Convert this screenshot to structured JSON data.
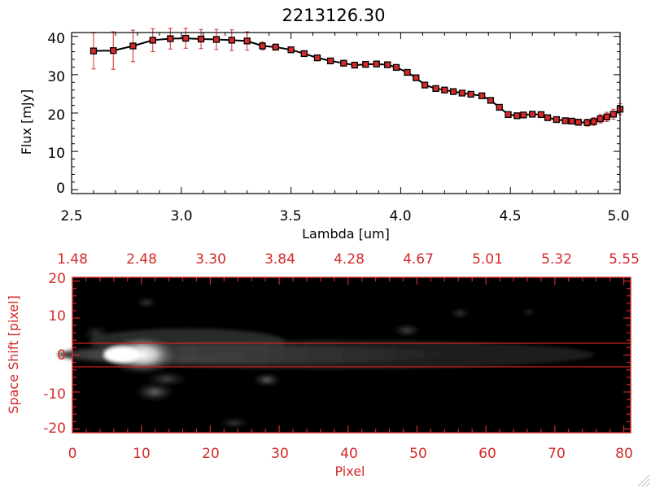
{
  "chart_data": [
    {
      "type": "line",
      "title": "2213126.30",
      "xlabel": "Lambda [um]",
      "ylabel": "Flux [mJy]",
      "xlim": [
        2.5,
        5.0
      ],
      "ylim": [
        -1,
        41
      ],
      "xticks": [
        "2.5",
        "3.0",
        "3.5",
        "4.0",
        "4.5",
        "5.0"
      ],
      "yticks": [
        "0",
        "10",
        "20",
        "30",
        "40"
      ],
      "series_color": "#000000",
      "marker_color": "#d42a2a",
      "error_color": "#d42a2a",
      "x": [
        2.6,
        2.69,
        2.78,
        2.87,
        2.95,
        3.02,
        3.09,
        3.16,
        3.23,
        3.3,
        3.37,
        3.43,
        3.5,
        3.56,
        3.62,
        3.68,
        3.74,
        3.79,
        3.84,
        3.89,
        3.94,
        3.98,
        4.03,
        4.07,
        4.11,
        4.16,
        4.2,
        4.24,
        4.28,
        4.32,
        4.37,
        4.41,
        4.45,
        4.49,
        4.53,
        4.56,
        4.6,
        4.64,
        4.67,
        4.71,
        4.75,
        4.78,
        4.81,
        4.85,
        4.88,
        4.91,
        4.94,
        4.97,
        5.0
      ],
      "y": [
        36.2,
        36.3,
        37.5,
        39.0,
        39.4,
        39.5,
        39.3,
        39.2,
        39.0,
        38.8,
        37.5,
        37.2,
        36.5,
        35.5,
        34.4,
        33.6,
        33.0,
        32.5,
        32.7,
        32.8,
        32.6,
        31.9,
        30.6,
        29.2,
        27.3,
        26.4,
        26.0,
        25.6,
        25.2,
        24.9,
        24.5,
        23.3,
        21.5,
        19.6,
        19.3,
        19.5,
        19.7,
        19.6,
        18.8,
        18.3,
        18.0,
        17.9,
        17.6,
        17.5,
        17.8,
        18.5,
        19.0,
        19.7,
        21.0
      ],
      "yerr": [
        4.7,
        4.9,
        4.1,
        3.0,
        2.7,
        2.6,
        2.5,
        2.6,
        2.7,
        2.4,
        1.0,
        0.8,
        0.6,
        0.5,
        0.5,
        0.4,
        0.4,
        0.4,
        0.4,
        0.4,
        0.4,
        0.4,
        0.4,
        0.4,
        0.5,
        0.5,
        0.5,
        0.5,
        0.5,
        0.5,
        0.6,
        0.6,
        0.6,
        0.6,
        0.6,
        0.6,
        0.6,
        0.6,
        0.6,
        0.6,
        0.6,
        0.7,
        0.8,
        0.9,
        1.0,
        1.1,
        1.2,
        1.3,
        1.4
      ]
    },
    {
      "type": "heatmap",
      "xlabel": "Pixel",
      "ylabel": "Space Shift [pixel]",
      "xlim": [
        0,
        81
      ],
      "ylim": [
        -21,
        21
      ],
      "xticks": [
        "0",
        "10",
        "20",
        "30",
        "40",
        "50",
        "60",
        "70",
        "80"
      ],
      "yticks": [
        "20",
        "10",
        "0",
        "-10",
        "-20"
      ],
      "top_axis_ticks": [
        "1.48",
        "2.48",
        "3.30",
        "3.84",
        "4.28",
        "4.67",
        "5.01",
        "5.32",
        "5.55"
      ],
      "axis_color": "#d42a2a",
      "extraction_lines": [
        3,
        -3
      ],
      "line_color": "#cc2222"
    }
  ]
}
